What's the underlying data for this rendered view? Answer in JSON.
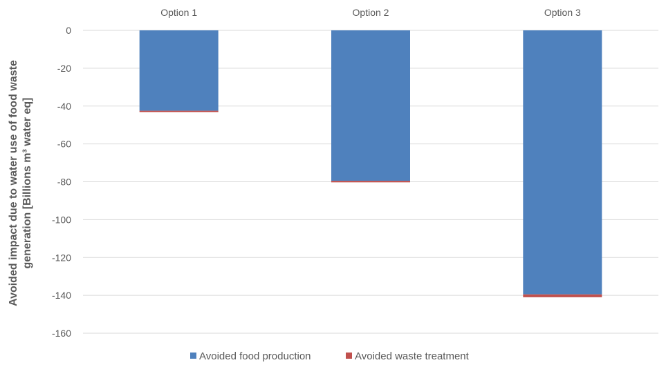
{
  "chart_data": {
    "type": "bar",
    "stacked": true,
    "categories": [
      "Option 1",
      "Option 2",
      "Option 3"
    ],
    "series": [
      {
        "name": "Avoided food production",
        "values": [
          -42.5,
          -79.5,
          -139.5
        ],
        "color": "#4f81bd"
      },
      {
        "name": "Avoided waste treatment",
        "values": [
          -0.6,
          -0.8,
          -1.5
        ],
        "color": "#c0504d"
      }
    ],
    "ylabel_lines": [
      "Avoided impact due to water use of food waste",
      "generation [Billions m³ water eq]"
    ],
    "ylim": [
      -160,
      0
    ],
    "yticks": [
      0,
      -20,
      -40,
      -60,
      -80,
      -100,
      -120,
      -140,
      -160
    ],
    "category_axis_position": "top",
    "grid": true,
    "legend_position": "bottom"
  }
}
